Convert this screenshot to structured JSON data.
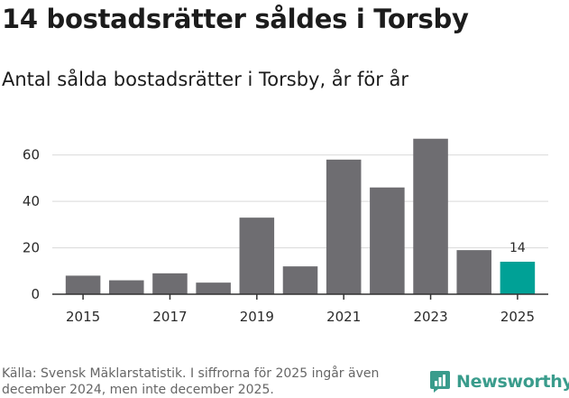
{
  "header": {
    "title": "14 bostadsrätter såldes i Torsby",
    "subtitle": "Antal sålda bostadsrätter i Torsby, år för år"
  },
  "chart_data": {
    "type": "bar",
    "title": "14 bostadsrätter såldes i Torsby",
    "subtitle": "Antal sålda bostadsrätter i Torsby, år för år",
    "xlabel": "",
    "ylabel": "",
    "categories": [
      "2015",
      "2016",
      "2017",
      "2018",
      "2019",
      "2020",
      "2021",
      "2022",
      "2023",
      "2024",
      "2025"
    ],
    "values": [
      8,
      6,
      9,
      5,
      33,
      12,
      58,
      46,
      67,
      19,
      14
    ],
    "ylim": [
      0,
      70
    ],
    "yticks": [
      0,
      20,
      40,
      60
    ],
    "xticks": [
      "2015",
      "2017",
      "2019",
      "2021",
      "2023",
      "2025"
    ],
    "highlight_index": 10,
    "data_labels": [
      {
        "index": 10,
        "text": "14"
      }
    ],
    "grid": true,
    "colors": {
      "bar": "#6e6d71",
      "highlight": "#00a196",
      "grid": "#d9d9d9",
      "axis": "#333333"
    }
  },
  "footer": {
    "source": "Källa: Svensk Mäklarstatistik. I siffrorna för 2025 ingår även december 2024, men inte december 2025.",
    "brand": "Newsworthy",
    "brand_color": "#3a9c8c",
    "brand_icon": "newsworthy-logo-icon"
  }
}
